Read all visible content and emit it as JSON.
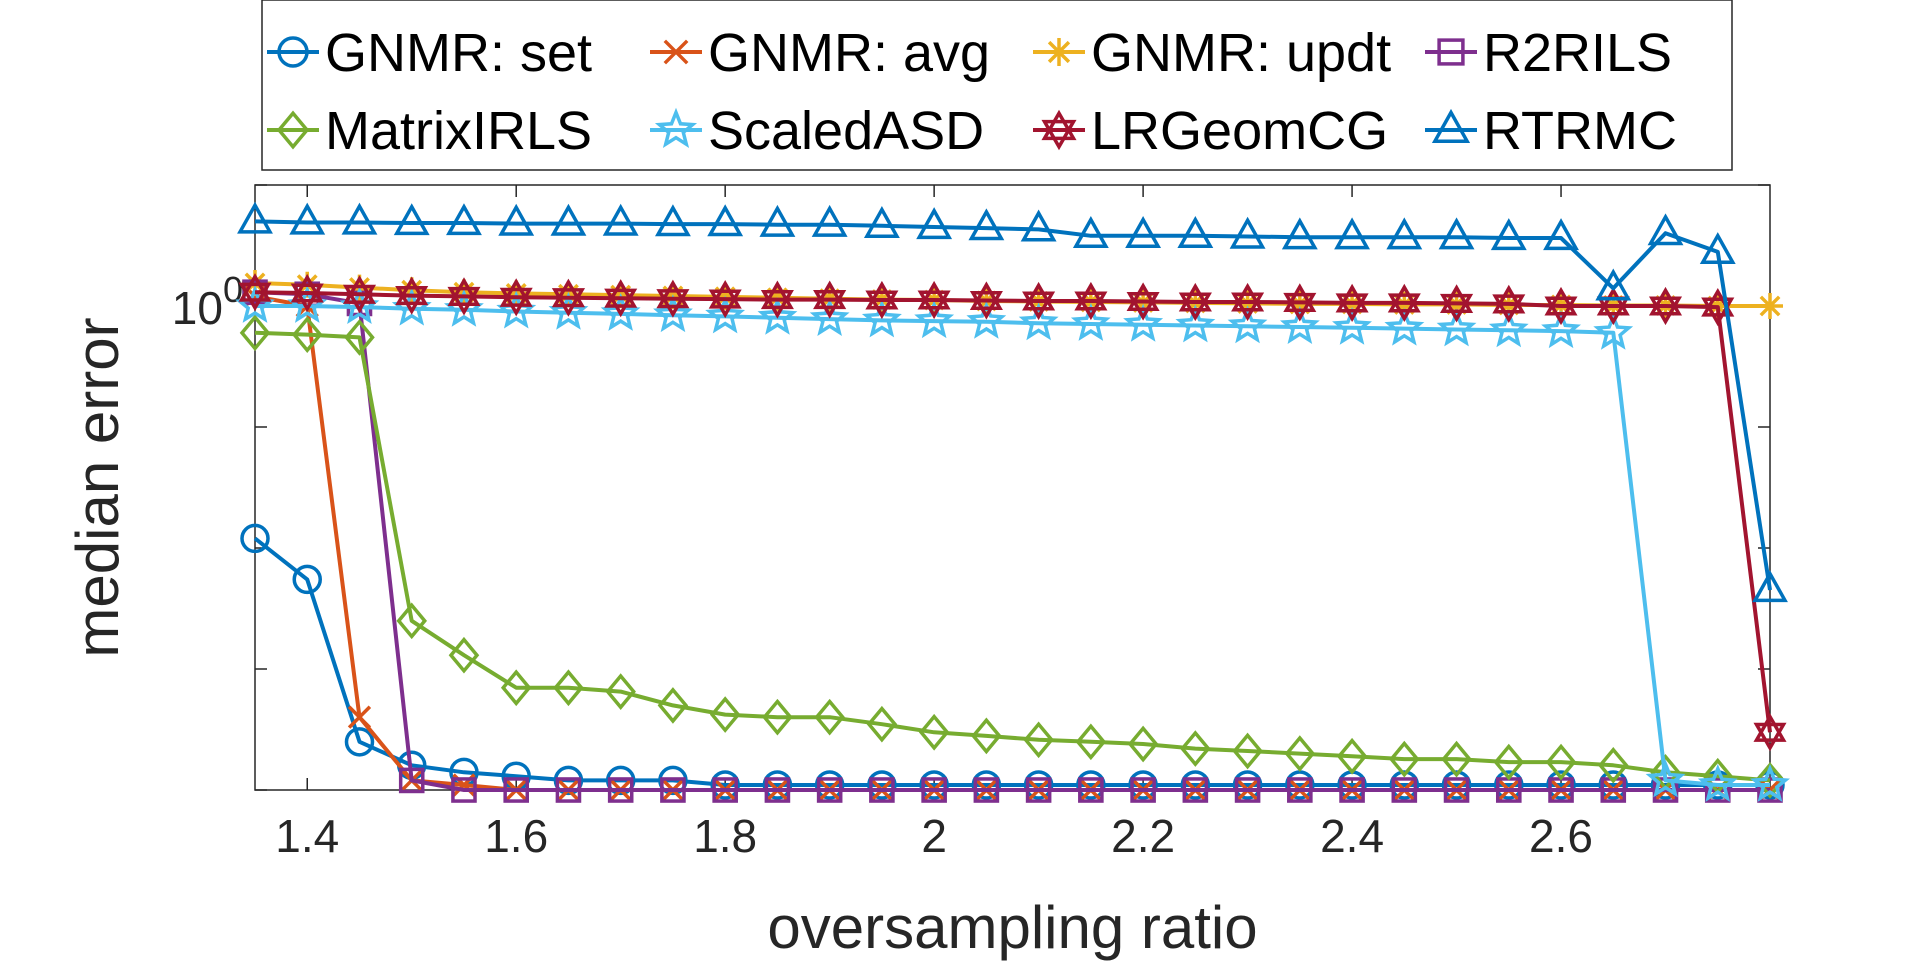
{
  "chart_data": {
    "type": "line",
    "xlabel": "oversampling ratio",
    "ylabel": "median error",
    "xlim": [
      1.35,
      2.8
    ],
    "ylim": [
      0.0001,
      10
    ],
    "yscale": "log",
    "xticks": [
      1.4,
      1.6,
      1.8,
      2,
      2.2,
      2.4,
      2.6
    ],
    "xtick_labels": [
      "1.4",
      "1.6",
      "1.8",
      "2",
      "2.2",
      "2.4",
      "2.6"
    ],
    "ytick_label": {
      "base": "10",
      "exp": "0"
    },
    "grid": false,
    "legend_position": "top",
    "x": [
      1.35,
      1.4,
      1.45,
      1.5,
      1.55,
      1.6,
      1.65,
      1.7,
      1.75,
      1.8,
      1.85,
      1.9,
      1.95,
      2,
      2.05,
      2.1,
      2.15,
      2.2,
      2.25,
      2.3,
      2.35,
      2.4,
      2.45,
      2.5,
      2.55,
      2.6,
      2.65,
      2.7,
      2.75,
      2.8
    ],
    "series": [
      {
        "name": "GNMR: set",
        "color": "#0072BD",
        "marker": "circle",
        "values": [
          0.012,
          0.0055,
          0.00025,
          0.00016,
          0.00014,
          0.00013,
          0.00012,
          0.00012,
          0.00012,
          0.00011,
          0.00011,
          0.00011,
          0.00011,
          0.00011,
          0.00011,
          0.00011,
          0.00011,
          0.00011,
          0.00011,
          0.00011,
          0.00011,
          0.00011,
          0.00011,
          0.00011,
          0.00011,
          0.00011,
          0.00011,
          0.00011,
          0.00011,
          0.00011
        ]
      },
      {
        "name": "GNMR: avg",
        "color": "#D95319",
        "marker": "x",
        "values": [
          1.2,
          1.0,
          0.0004,
          0.00012,
          0.00011,
          0.0001,
          0.0001,
          0.0001,
          0.0001,
          0.0001,
          0.0001,
          0.0001,
          0.0001,
          0.0001,
          0.0001,
          0.0001,
          0.0001,
          0.0001,
          0.0001,
          0.0001,
          0.0001,
          0.0001,
          0.0001,
          0.0001,
          0.0001,
          0.0001,
          0.0001,
          0.0001,
          0.0001,
          0.0001
        ]
      },
      {
        "name": "GNMR: updt",
        "color": "#EDB120",
        "marker": "asterisk",
        "values": [
          1.55,
          1.5,
          1.42,
          1.35,
          1.3,
          1.27,
          1.25,
          1.23,
          1.21,
          1.19,
          1.17,
          1.15,
          1.13,
          1.12,
          1.1,
          1.09,
          1.08,
          1.07,
          1.06,
          1.05,
          1.04,
          1.04,
          1.03,
          1.03,
          1.02,
          1.02,
          1.01,
          1.01,
          1.0,
          1.0
        ]
      },
      {
        "name": "R2RILS",
        "color": "#7E2F8E",
        "marker": "square",
        "values": [
          1.3,
          1.25,
          1.05,
          0.00012,
          0.0001,
          0.0001,
          0.0001,
          0.0001,
          0.0001,
          0.0001,
          0.0001,
          0.0001,
          0.0001,
          0.0001,
          0.0001,
          0.0001,
          0.0001,
          0.0001,
          0.0001,
          0.0001,
          0.0001,
          0.0001,
          0.0001,
          0.0001,
          0.0001,
          0.0001,
          0.0001,
          0.0001,
          0.0001,
          0.0001
        ]
      },
      {
        "name": "MatrixIRLS",
        "color": "#77AC30",
        "marker": "diamond",
        "values": [
          0.6,
          0.58,
          0.55,
          0.0025,
          0.0013,
          0.0007,
          0.0007,
          0.00065,
          0.0005,
          0.00042,
          0.0004,
          0.0004,
          0.00035,
          0.0003,
          0.00028,
          0.00026,
          0.00025,
          0.00024,
          0.00022,
          0.00021,
          0.0002,
          0.00019,
          0.00018,
          0.00018,
          0.00017,
          0.00017,
          0.00016,
          0.00014,
          0.00013,
          0.00012
        ]
      },
      {
        "name": "ScaledASD",
        "color": "#4DBEEE",
        "marker": "star",
        "values": [
          1.0,
          1.0,
          0.98,
          0.95,
          0.93,
          0.9,
          0.88,
          0.86,
          0.84,
          0.82,
          0.8,
          0.78,
          0.76,
          0.75,
          0.74,
          0.72,
          0.71,
          0.7,
          0.69,
          0.68,
          0.67,
          0.66,
          0.65,
          0.64,
          0.63,
          0.62,
          0.6,
          0.00012,
          0.00011,
          0.00011
        ]
      },
      {
        "name": "LRGeomCG",
        "color": "#A2142F",
        "marker": "hexagram",
        "values": [
          1.3,
          1.28,
          1.25,
          1.22,
          1.2,
          1.18,
          1.17,
          1.16,
          1.15,
          1.14,
          1.13,
          1.13,
          1.12,
          1.12,
          1.11,
          1.1,
          1.1,
          1.09,
          1.08,
          1.08,
          1.07,
          1.06,
          1.06,
          1.05,
          1.04,
          1.0,
          1.0,
          1.0,
          0.98,
          0.0003
        ]
      },
      {
        "name": "RTRMC",
        "color": "#0072BD",
        "marker": "triangle",
        "values": [
          5.0,
          4.9,
          4.9,
          4.85,
          4.85,
          4.8,
          4.8,
          4.8,
          4.75,
          4.75,
          4.7,
          4.7,
          4.6,
          4.5,
          4.4,
          4.3,
          3.8,
          3.8,
          3.8,
          3.75,
          3.7,
          3.7,
          3.7,
          3.7,
          3.65,
          3.65,
          1.4,
          4.0,
          2.8,
          0.0045
        ]
      }
    ]
  }
}
